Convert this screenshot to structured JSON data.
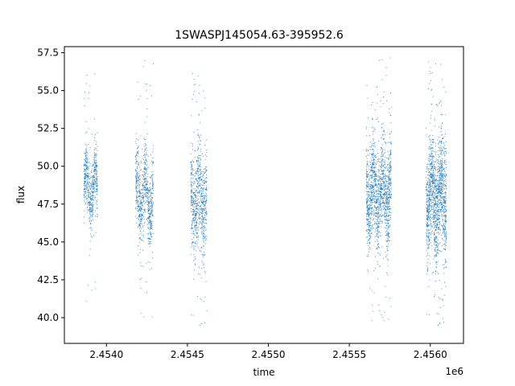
{
  "chart_data": {
    "type": "scatter",
    "title": "1SWASPJ145054.63-395952.6",
    "xlabel": "time",
    "ylabel": "flux",
    "x_offset_label": "1e6",
    "xlim": [
      2453740,
      2456205
    ],
    "ylim": [
      38.3,
      57.9
    ],
    "x_ticks": [
      2.454,
      2.4545,
      2.455,
      2.4555,
      2.456
    ],
    "x_tick_labels": [
      "2.4540",
      "2.4545",
      "2.4550",
      "2.4555",
      "2.4560"
    ],
    "y_ticks": [
      40.0,
      42.5,
      45.0,
      47.5,
      50.0,
      52.5,
      55.0,
      57.5
    ],
    "y_tick_labels": [
      "40.0",
      "42.5",
      "45.0",
      "47.5",
      "50.0",
      "52.5",
      "55.0",
      "57.5"
    ],
    "grid": false,
    "marker_color": "#1f77b4",
    "clusters": [
      {
        "x_start": 2453860,
        "x_end": 2453945,
        "y_center": 48.5,
        "y_spread": 1.0,
        "y_min": 40.5,
        "y_max": 56.5,
        "n": 600
      },
      {
        "x_start": 2454180,
        "x_end": 2454290,
        "y_center": 48.0,
        "y_spread": 1.3,
        "y_min": 40.0,
        "y_max": 57.0,
        "n": 800
      },
      {
        "x_start": 2454520,
        "x_end": 2454620,
        "y_center": 47.8,
        "y_spread": 1.6,
        "y_min": 39.3,
        "y_max": 56.5,
        "n": 800
      },
      {
        "x_start": 2455605,
        "x_end": 2455760,
        "y_center": 48.3,
        "y_spread": 1.5,
        "y_min": 39.5,
        "y_max": 57.2,
        "n": 1500
      },
      {
        "x_start": 2455975,
        "x_end": 2456100,
        "y_center": 48.0,
        "y_spread": 1.8,
        "y_min": 39.3,
        "y_max": 57.3,
        "n": 1500
      }
    ]
  }
}
